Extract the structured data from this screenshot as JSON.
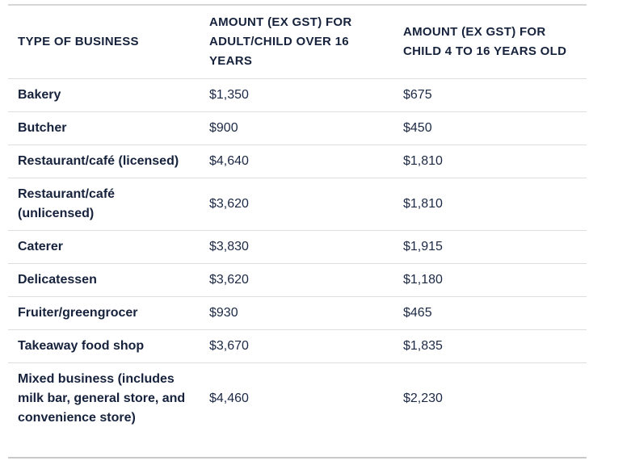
{
  "table": {
    "columns": [
      {
        "label": "TYPE OF BUSINESS"
      },
      {
        "label": "AMOUNT (EX GST) FOR ADULT/CHILD OVER 16 YEARS"
      },
      {
        "label": "AMOUNT (EX GST) FOR CHILD 4 TO 16 YEARS OLD"
      }
    ],
    "rows": [
      {
        "business": "Bakery",
        "adult": "$1,350",
        "child": "$675"
      },
      {
        "business": "Butcher",
        "adult": "$900",
        "child": "$450"
      },
      {
        "business": "Restaurant/café (licensed)",
        "adult": "$4,640",
        "child": "$1,810"
      },
      {
        "business": "Restaurant/café (unlicensed)",
        "adult": "$3,620",
        "child": "$1,810"
      },
      {
        "business": "Caterer",
        "adult": "$3,830",
        "child": "$1,915"
      },
      {
        "business": "Delicatessen",
        "adult": "$3,620",
        "child": "$1,180"
      },
      {
        "business": "Fruiter/greengrocer",
        "adult": "$930",
        "child": "$465"
      },
      {
        "business": "Takeaway food shop",
        "adult": "$3,670",
        "child": "$1,835"
      },
      {
        "business": "Mixed business (includes milk bar, general store, and convenience store)",
        "adult": "$4,460",
        "child": "$2,230"
      }
    ]
  },
  "colors": {
    "heading_text": "#16223c",
    "body_text": "#1c2944",
    "row_border": "#dedede",
    "table_top_border": "#d6d6d6",
    "table_bottom_border": "#c9c9c9",
    "background": "#ffffff"
  }
}
